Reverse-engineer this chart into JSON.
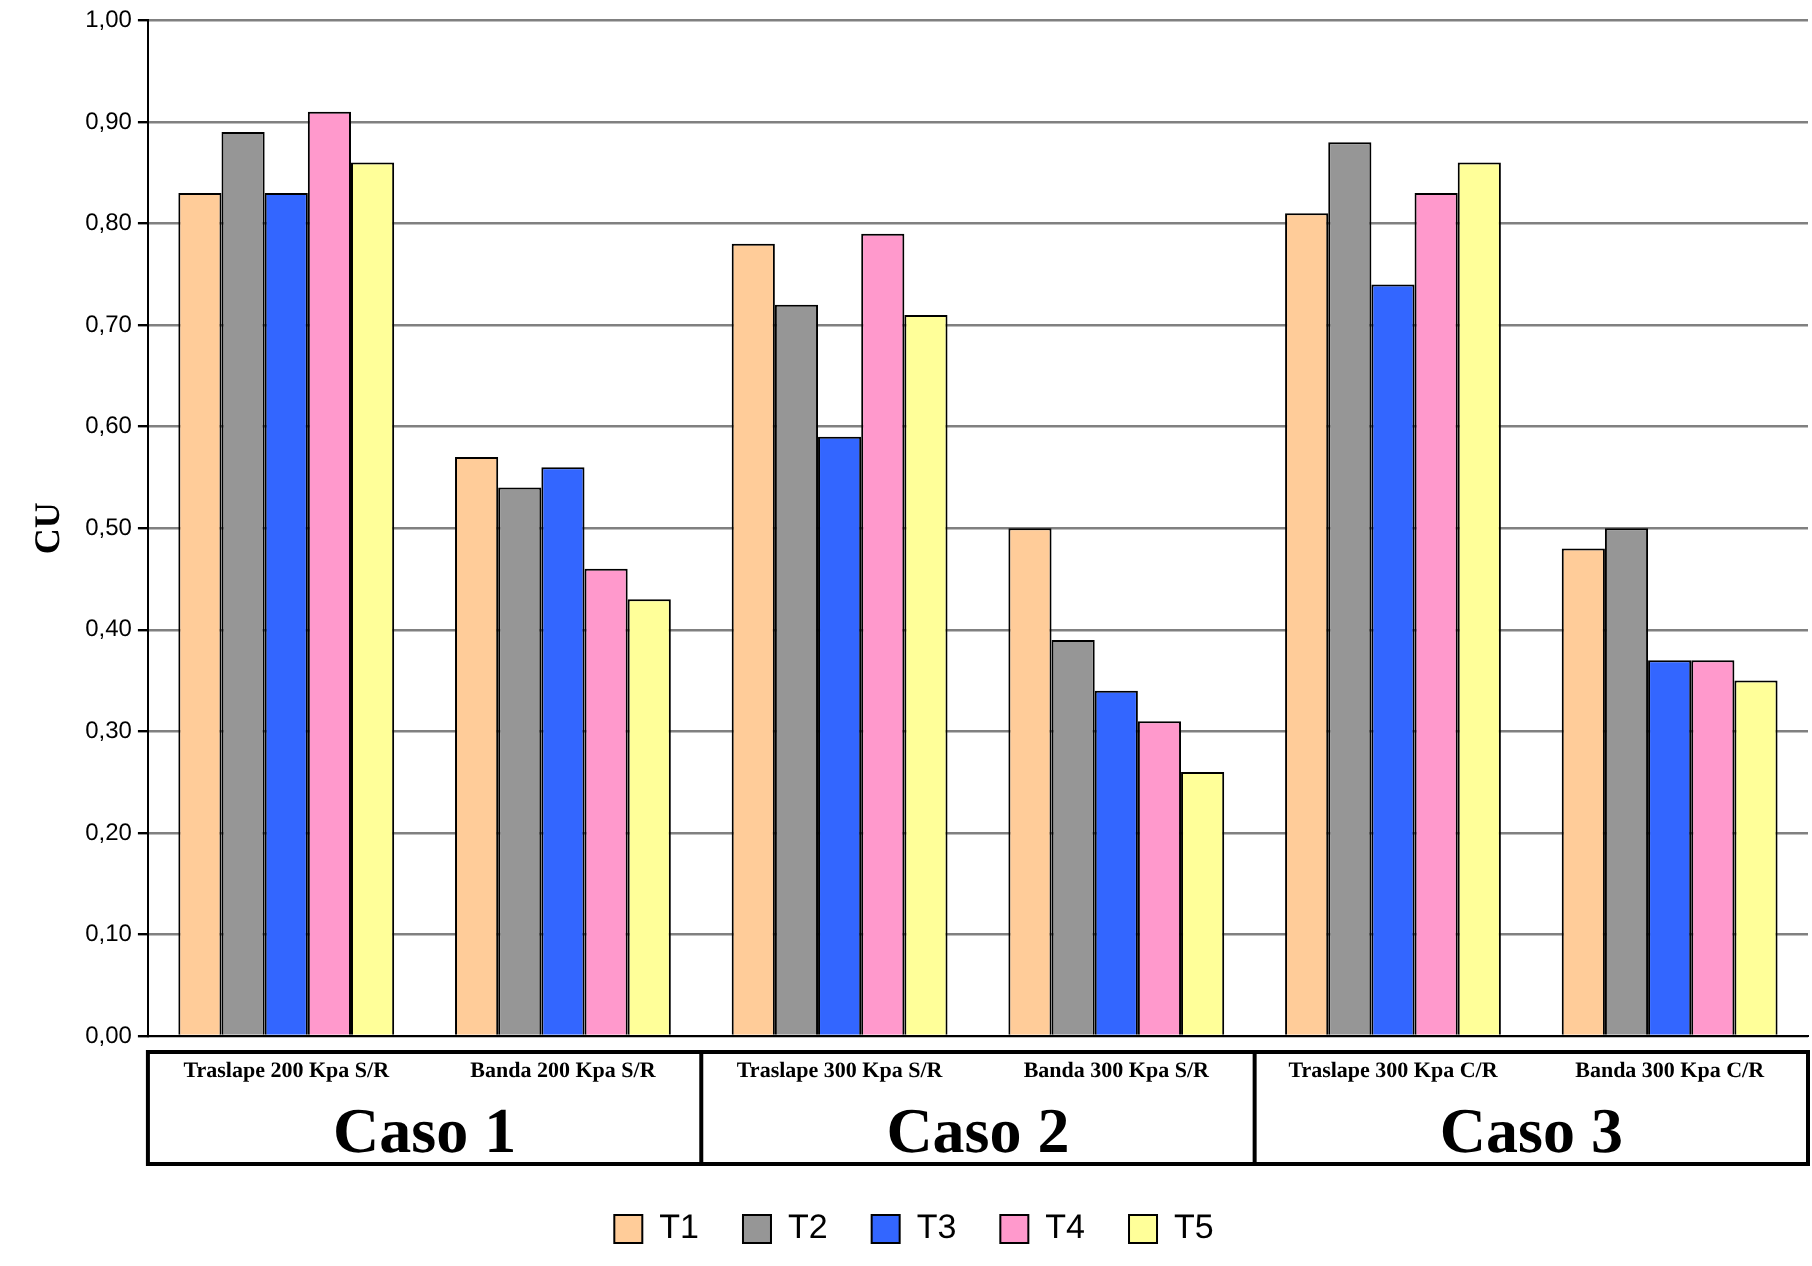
{
  "chart_data": {
    "type": "bar",
    "ylabel": "CU",
    "categories": [
      "Traslape 200 Kpa S/R",
      "Banda 200 Kpa S/R",
      "Traslape 300 Kpa S/R",
      "Banda 300 Kpa S/R",
      "Traslape 300 Kpa C/R",
      "Banda 300 Kpa C/R"
    ],
    "series": [
      {
        "name": "T1",
        "color": "#ffcc99",
        "values": [
          0.83,
          0.57,
          0.78,
          0.5,
          0.81,
          0.48
        ]
      },
      {
        "name": "T2",
        "color": "#969696",
        "values": [
          0.89,
          0.54,
          0.72,
          0.39,
          0.88,
          0.5
        ]
      },
      {
        "name": "T3",
        "color": "#3366ff",
        "values": [
          0.83,
          0.56,
          0.59,
          0.34,
          0.74,
          0.37
        ]
      },
      {
        "name": "T4",
        "color": "#ff99cc",
        "values": [
          0.91,
          0.46,
          0.79,
          0.31,
          0.83,
          0.37
        ]
      },
      {
        "name": "T5",
        "color": "#ffff99",
        "values": [
          0.86,
          0.43,
          0.71,
          0.26,
          0.86,
          0.35
        ]
      }
    ],
    "ylim": [
      0,
      1
    ],
    "yticks": [
      {
        "value": 0,
        "label": "0,00"
      },
      {
        "value": 0.1,
        "label": "0,10"
      },
      {
        "value": 0.2,
        "label": "0,20"
      },
      {
        "value": 0.3,
        "label": "0,30"
      },
      {
        "value": 0.4,
        "label": "0,40"
      },
      {
        "value": 0.5,
        "label": "0,50"
      },
      {
        "value": 0.6,
        "label": "0,60"
      },
      {
        "value": 0.7,
        "label": "0,70"
      },
      {
        "value": 0.8,
        "label": "0,80"
      },
      {
        "value": 0.9,
        "label": "0,90"
      },
      {
        "value": 1,
        "label": "1,00"
      }
    ],
    "grid": "y",
    "legend": "bottom",
    "annotations": [
      "Caso 1",
      "Caso 2",
      "Caso 3"
    ]
  }
}
